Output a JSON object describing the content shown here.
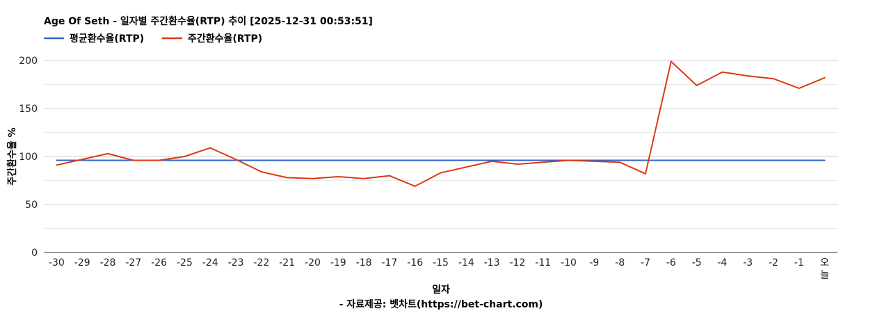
{
  "chart_data": {
    "type": "line",
    "title": "Age Of Seth - 일자별 주간환수율(RTP) 추이 [2025-12-31 00:53:51]",
    "xlabel": "일자",
    "ylabel": "주간환수율 %",
    "source": "- 자료제공: 벳차트(https://bet-chart.com)",
    "ylim": [
      0,
      200
    ],
    "yticks": [
      "0",
      "50",
      "100",
      "150",
      "200"
    ],
    "grid": true,
    "legend_position": "top-left",
    "categories": [
      "-30",
      "-29",
      "-28",
      "-27",
      "-26",
      "-25",
      "-24",
      "-23",
      "-22",
      "-21",
      "-20",
      "-19",
      "-18",
      "-17",
      "-16",
      "-15",
      "-14",
      "-13",
      "-12",
      "-11",
      "-10",
      "-9",
      "-8",
      "-7",
      "-6",
      "-5",
      "-4",
      "-3",
      "-2",
      "-1",
      "오늘"
    ],
    "series": [
      {
        "name": "평균환수율(RTP)",
        "color": "#3366cc",
        "values": [
          96,
          96,
          96,
          96,
          96,
          96,
          96,
          96,
          96,
          96,
          96,
          96,
          96,
          96,
          96,
          96,
          96,
          96,
          96,
          96,
          96,
          96,
          96,
          96,
          96,
          96,
          96,
          96,
          96,
          96,
          96
        ]
      },
      {
        "name": "주간환수율(RTP)",
        "color": "#dc3912",
        "values": [
          91,
          97,
          103,
          96,
          96,
          100,
          109,
          97,
          84,
          78,
          77,
          79,
          77,
          80,
          69,
          83,
          89,
          95,
          92,
          94,
          96,
          95,
          94,
          82,
          199,
          174,
          188,
          184,
          181,
          171,
          182
        ]
      }
    ]
  }
}
